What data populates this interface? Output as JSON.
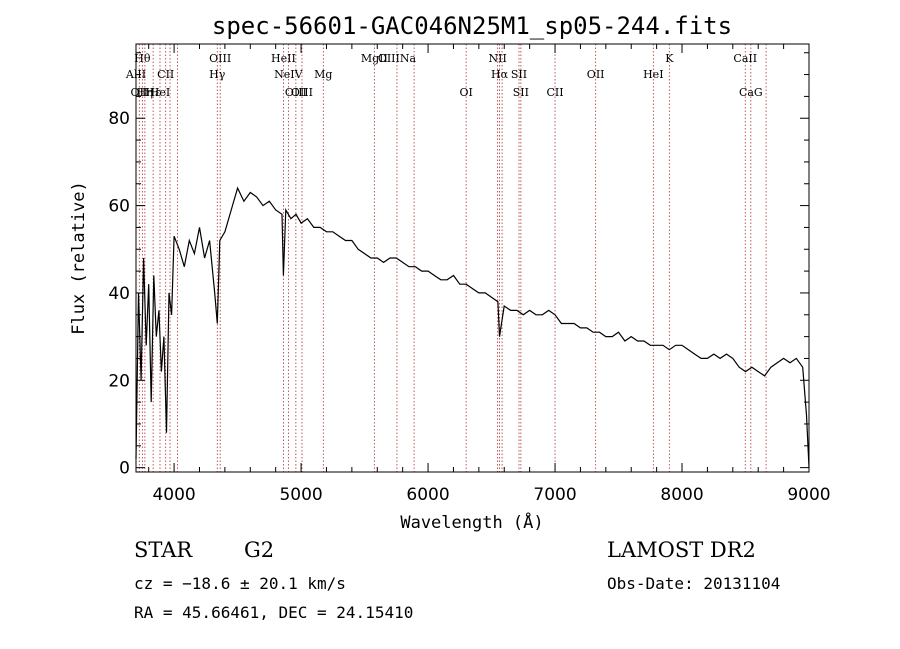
{
  "chart_data": {
    "type": "line",
    "title": "spec-56601-GAC046N25M1_sp05-244.fits",
    "xlabel": "Wavelength (Å)",
    "ylabel": "Flux (relative)",
    "xlim": [
      3700,
      9000
    ],
    "ylim": [
      -1,
      97
    ],
    "xticks": [
      "4000",
      "5000",
      "6000",
      "7000",
      "8000",
      "9000"
    ],
    "yticks": [
      "0",
      "20",
      "40",
      "60",
      "80"
    ],
    "grid": false,
    "series": [
      {
        "x": [
          3700,
          3720,
          3740,
          3760,
          3780,
          3800,
          3820,
          3840,
          3860,
          3880,
          3900,
          3920,
          3940,
          3960,
          3980,
          4000,
          4040,
          4080,
          4120,
          4160,
          4200,
          4240,
          4280,
          4320,
          4340,
          4360,
          4400,
          4450,
          4500,
          4550,
          4600,
          4650,
          4700,
          4750,
          4800,
          4850,
          4861,
          4880,
          4920,
          4960,
          5000,
          5050,
          5100,
          5150,
          5200,
          5250,
          5300,
          5350,
          5400,
          5450,
          5500,
          5550,
          5600,
          5650,
          5700,
          5750,
          5800,
          5850,
          5900,
          5950,
          6000,
          6050,
          6100,
          6150,
          6200,
          6250,
          6300,
          6350,
          6400,
          6450,
          6500,
          6550,
          6563,
          6600,
          6650,
          6700,
          6750,
          6800,
          6850,
          6900,
          6950,
          7000,
          7050,
          7100,
          7150,
          7200,
          7250,
          7300,
          7350,
          7400,
          7450,
          7500,
          7550,
          7600,
          7650,
          7700,
          7750,
          7800,
          7850,
          7900,
          7950,
          8000,
          8050,
          8100,
          8150,
          8200,
          8250,
          8300,
          8350,
          8400,
          8450,
          8500,
          8550,
          8600,
          8650,
          8700,
          8750,
          8800,
          8850,
          8900,
          8950,
          8980,
          9000
        ],
        "y": [
          2,
          40,
          20,
          48,
          28,
          42,
          15,
          44,
          30,
          36,
          22,
          30,
          8,
          40,
          35,
          53,
          50,
          46,
          52,
          49,
          55,
          48,
          52,
          40,
          33,
          52,
          54,
          59,
          64,
          61,
          63,
          62,
          60,
          61,
          59,
          58,
          44,
          59,
          57,
          58,
          56,
          57,
          55,
          55,
          54,
          54,
          53,
          52,
          52,
          50,
          49,
          48,
          48,
          47,
          48,
          48,
          47,
          46,
          46,
          45,
          45,
          44,
          43,
          43,
          44,
          42,
          42,
          41,
          40,
          40,
          39,
          38,
          30,
          37,
          36,
          36,
          35,
          36,
          35,
          35,
          36,
          35,
          33,
          33,
          33,
          32,
          32,
          31,
          31,
          30,
          30,
          31,
          29,
          30,
          29,
          29,
          28,
          28,
          28,
          27,
          28,
          28,
          27,
          26,
          25,
          25,
          26,
          25,
          26,
          25,
          23,
          22,
          23,
          22,
          21,
          23,
          24,
          25,
          24,
          25,
          23,
          12,
          0
        ]
      }
    ],
    "lines": [
      {
        "w": 3700,
        "label": "AlII",
        "row": 2
      },
      {
        "w": 3726,
        "label": "OII",
        "row": 3
      },
      {
        "w": 3750,
        "label": "Hθ",
        "row": 1
      },
      {
        "w": 3770,
        "label": "Hη",
        "row": 3
      },
      {
        "w": 3835,
        "label": "Hε",
        "row": 3
      },
      {
        "w": 3889,
        "label": "HeI",
        "row": 3
      },
      {
        "w": 3934,
        "label": "CII",
        "row": 2
      },
      {
        "w": 3968,
        "label": "",
        "row": 0
      },
      {
        "w": 4026,
        "label": "",
        "row": 0
      },
      {
        "w": 4340,
        "label": "Hγ",
        "row": 2
      },
      {
        "w": 4363,
        "label": "OIII",
        "row": 1
      },
      {
        "w": 4861,
        "label": "HeII",
        "row": 1
      },
      {
        "w": 4900,
        "label": "NeIV",
        "row": 2
      },
      {
        "w": 4959,
        "label": "OIII",
        "row": 3
      },
      {
        "w": 5007,
        "label": "OIII",
        "row": 3
      },
      {
        "w": 5175,
        "label": "Mg",
        "row": 2
      },
      {
        "w": 5577,
        "label": "MgII",
        "row": 1
      },
      {
        "w": 5755,
        "label": "OIIINa",
        "row": 1
      },
      {
        "w": 5890,
        "label": "",
        "row": 0
      },
      {
        "w": 6300,
        "label": "OI",
        "row": 3
      },
      {
        "w": 6548,
        "label": "NII",
        "row": 1
      },
      {
        "w": 6563,
        "label": "Hα",
        "row": 2
      },
      {
        "w": 6583,
        "label": "",
        "row": 0
      },
      {
        "w": 6716,
        "label": "SII",
        "row": 2
      },
      {
        "w": 6731,
        "label": "SII",
        "row": 3
      },
      {
        "w": 7000,
        "label": "CII",
        "row": 3
      },
      {
        "w": 7320,
        "label": "OII",
        "row": 2
      },
      {
        "w": 7774,
        "label": "HeI",
        "row": 2
      },
      {
        "w": 7900,
        "label": "K",
        "row": 1
      },
      {
        "w": 8498,
        "label": "CaII",
        "row": 1
      },
      {
        "w": 8542,
        "label": "CaG",
        "row": 3
      },
      {
        "w": 8662,
        "label": "",
        "row": 0
      }
    ]
  },
  "info": {
    "object_type": "STAR",
    "subclass": "G2",
    "survey": "LAMOST DR2",
    "cz": "cz = −18.6 ± 20.1 km/s",
    "obs_date": "Obs-Date: 20131104",
    "coords": "RA =  45.66461, DEC =  24.15410"
  }
}
